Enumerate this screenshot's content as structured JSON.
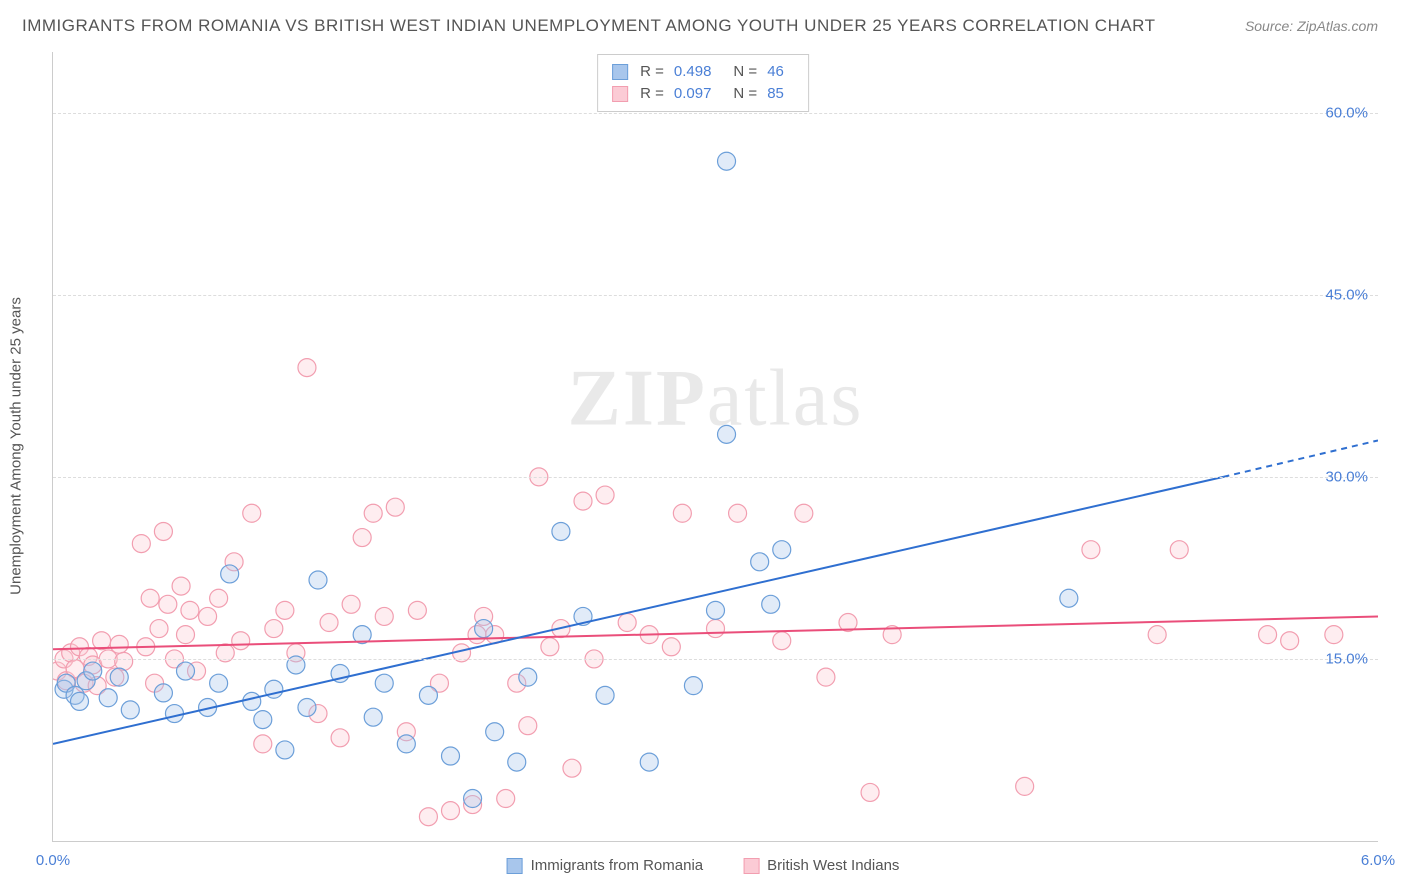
{
  "title": "IMMIGRANTS FROM ROMANIA VS BRITISH WEST INDIAN UNEMPLOYMENT AMONG YOUTH UNDER 25 YEARS CORRELATION CHART",
  "source": "Source: ZipAtlas.com",
  "ylabel": "Unemployment Among Youth under 25 years",
  "watermark_a": "ZIP",
  "watermark_b": "atlas",
  "chart": {
    "type": "scatter",
    "xlim": [
      0.0,
      6.0
    ],
    "ylim": [
      0.0,
      65.0
    ],
    "yticks": [
      15.0,
      30.0,
      45.0,
      60.0
    ],
    "ytick_labels": [
      "15.0%",
      "30.0%",
      "45.0%",
      "60.0%"
    ],
    "xticks": [
      0.0,
      6.0
    ],
    "xtick_labels": [
      "0.0%",
      "6.0%"
    ],
    "background_color": "#ffffff",
    "grid_color": "#dddddd",
    "axis_color": "#cccccc",
    "tick_font_color": "#4a7fd6",
    "label_font_color": "#555555",
    "marker_radius": 9,
    "marker_stroke_width": 1.2,
    "marker_fill_opacity": 0.35,
    "line_width": 2
  },
  "series": [
    {
      "name": "Immigrants from Romania",
      "color_fill": "#a8c6ec",
      "color_stroke": "#6c9fd9",
      "line_color": "#2f6fd0",
      "r_label": "R =",
      "r_value": "0.498",
      "n_label": "N =",
      "n_value": "46",
      "trend": {
        "x1": 0.0,
        "y1": 8.0,
        "x2": 5.3,
        "y2": 30.0,
        "x2_ext": 6.0,
        "y2_ext": 33.0
      },
      "points": [
        [
          0.05,
          12.5
        ],
        [
          0.06,
          13.0
        ],
        [
          0.1,
          12.0
        ],
        [
          0.12,
          11.5
        ],
        [
          0.15,
          13.2
        ],
        [
          0.18,
          14.0
        ],
        [
          0.25,
          11.8
        ],
        [
          0.3,
          13.5
        ],
        [
          0.35,
          10.8
        ],
        [
          0.5,
          12.2
        ],
        [
          0.55,
          10.5
        ],
        [
          0.6,
          14.0
        ],
        [
          0.7,
          11.0
        ],
        [
          0.75,
          13.0
        ],
        [
          0.8,
          22.0
        ],
        [
          0.9,
          11.5
        ],
        [
          0.95,
          10.0
        ],
        [
          1.0,
          12.5
        ],
        [
          1.05,
          7.5
        ],
        [
          1.1,
          14.5
        ],
        [
          1.15,
          11.0
        ],
        [
          1.2,
          21.5
        ],
        [
          1.3,
          13.8
        ],
        [
          1.4,
          17.0
        ],
        [
          1.45,
          10.2
        ],
        [
          1.5,
          13.0
        ],
        [
          1.6,
          8.0
        ],
        [
          1.7,
          12.0
        ],
        [
          1.8,
          7.0
        ],
        [
          1.9,
          3.5
        ],
        [
          1.95,
          17.5
        ],
        [
          2.0,
          9.0
        ],
        [
          2.1,
          6.5
        ],
        [
          2.15,
          13.5
        ],
        [
          2.3,
          25.5
        ],
        [
          2.4,
          18.5
        ],
        [
          2.5,
          12.0
        ],
        [
          2.7,
          6.5
        ],
        [
          2.9,
          12.8
        ],
        [
          3.0,
          19.0
        ],
        [
          3.05,
          33.5
        ],
        [
          3.05,
          56.0
        ],
        [
          3.2,
          23.0
        ],
        [
          3.25,
          19.5
        ],
        [
          3.3,
          24.0
        ],
        [
          4.6,
          20.0
        ]
      ]
    },
    {
      "name": "British West Indians",
      "color_fill": "#fbcbd5",
      "color_stroke": "#f29eb0",
      "line_color": "#ea4e7a",
      "r_label": "R =",
      "r_value": "0.097",
      "n_label": "N =",
      "n_value": "85",
      "trend": {
        "x1": 0.0,
        "y1": 15.8,
        "x2": 6.0,
        "y2": 18.5
      },
      "points": [
        [
          0.02,
          14.0
        ],
        [
          0.05,
          15.0
        ],
        [
          0.06,
          13.2
        ],
        [
          0.08,
          15.5
        ],
        [
          0.1,
          14.2
        ],
        [
          0.12,
          16.0
        ],
        [
          0.14,
          13.0
        ],
        [
          0.16,
          15.2
        ],
        [
          0.18,
          14.5
        ],
        [
          0.2,
          12.8
        ],
        [
          0.22,
          16.5
        ],
        [
          0.25,
          15.0
        ],
        [
          0.28,
          13.5
        ],
        [
          0.3,
          16.2
        ],
        [
          0.32,
          14.8
        ],
        [
          0.4,
          24.5
        ],
        [
          0.42,
          16.0
        ],
        [
          0.44,
          20.0
        ],
        [
          0.46,
          13.0
        ],
        [
          0.48,
          17.5
        ],
        [
          0.5,
          25.5
        ],
        [
          0.52,
          19.5
        ],
        [
          0.55,
          15.0
        ],
        [
          0.58,
          21.0
        ],
        [
          0.6,
          17.0
        ],
        [
          0.62,
          19.0
        ],
        [
          0.65,
          14.0
        ],
        [
          0.7,
          18.5
        ],
        [
          0.75,
          20.0
        ],
        [
          0.78,
          15.5
        ],
        [
          0.82,
          23.0
        ],
        [
          0.85,
          16.5
        ],
        [
          0.9,
          27.0
        ],
        [
          0.95,
          8.0
        ],
        [
          1.0,
          17.5
        ],
        [
          1.05,
          19.0
        ],
        [
          1.1,
          15.5
        ],
        [
          1.15,
          39.0
        ],
        [
          1.2,
          10.5
        ],
        [
          1.25,
          18.0
        ],
        [
          1.3,
          8.5
        ],
        [
          1.35,
          19.5
        ],
        [
          1.4,
          25.0
        ],
        [
          1.45,
          27.0
        ],
        [
          1.5,
          18.5
        ],
        [
          1.55,
          27.5
        ],
        [
          1.6,
          9.0
        ],
        [
          1.65,
          19.0
        ],
        [
          1.7,
          2.0
        ],
        [
          1.75,
          13.0
        ],
        [
          1.8,
          2.5
        ],
        [
          1.85,
          15.5
        ],
        [
          1.9,
          3.0
        ],
        [
          1.92,
          17.0
        ],
        [
          1.95,
          18.5
        ],
        [
          2.0,
          17.0
        ],
        [
          2.05,
          3.5
        ],
        [
          2.1,
          13.0
        ],
        [
          2.15,
          9.5
        ],
        [
          2.2,
          30.0
        ],
        [
          2.25,
          16.0
        ],
        [
          2.3,
          17.5
        ],
        [
          2.35,
          6.0
        ],
        [
          2.4,
          28.0
        ],
        [
          2.45,
          15.0
        ],
        [
          2.5,
          28.5
        ],
        [
          2.6,
          18.0
        ],
        [
          2.7,
          17.0
        ],
        [
          2.8,
          16.0
        ],
        [
          2.85,
          27.0
        ],
        [
          3.0,
          17.5
        ],
        [
          3.1,
          27.0
        ],
        [
          3.3,
          16.5
        ],
        [
          3.4,
          27.0
        ],
        [
          3.5,
          13.5
        ],
        [
          3.6,
          18.0
        ],
        [
          3.7,
          4.0
        ],
        [
          3.8,
          17.0
        ],
        [
          4.4,
          4.5
        ],
        [
          4.7,
          24.0
        ],
        [
          5.0,
          17.0
        ],
        [
          5.1,
          24.0
        ],
        [
          5.5,
          17.0
        ],
        [
          5.6,
          16.5
        ],
        [
          5.8,
          17.0
        ]
      ]
    }
  ]
}
